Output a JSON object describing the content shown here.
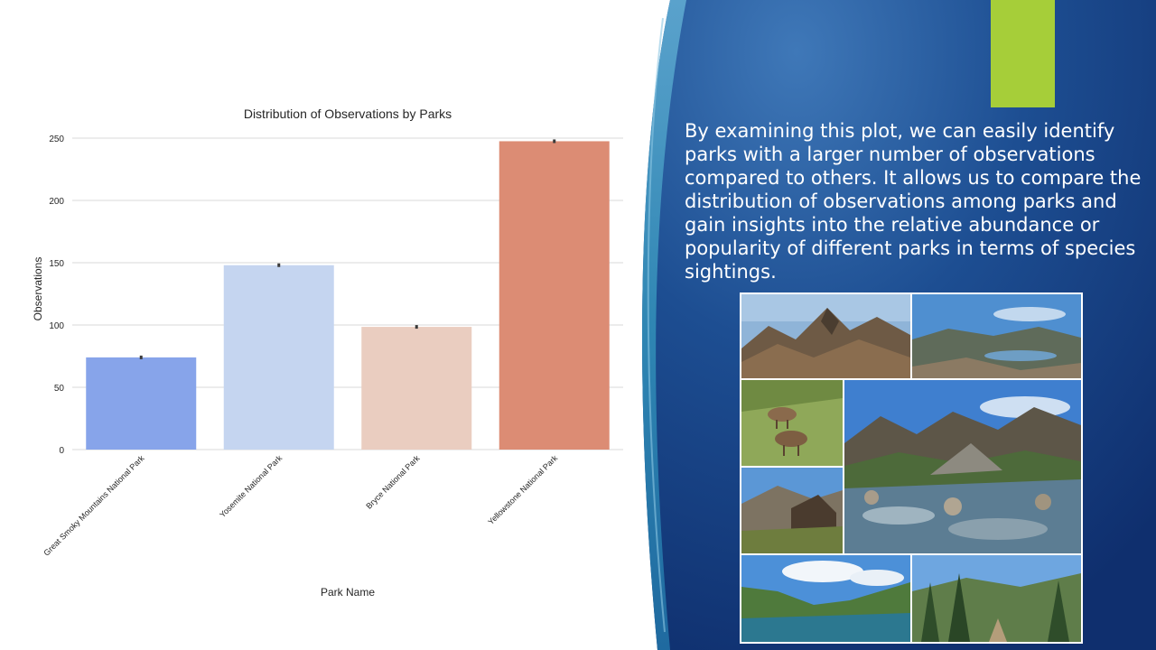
{
  "slide": {
    "body_text": "By examining this plot, we can easily identify parks with a larger number of observations compared to others. It allows us to compare the distribution of observations among parks and gain insights into the relative abundance or popularity of different parks in terms of species sightings.",
    "accent_color": "#a6ce39",
    "background_color": "#1c4a8a"
  },
  "chart_data": {
    "type": "bar",
    "title": "Distribution of Observations by Parks",
    "xlabel": "Park Name",
    "ylabel": "Observations",
    "categories": [
      "Great Smoky Mountains National Park",
      "Yosemite National Park",
      "Bryce National Park",
      "Yellowstone National Park"
    ],
    "values": [
      74,
      148,
      98.5,
      247.5
    ],
    "colors": [
      "#87a4ea",
      "#c5d5f0",
      "#eacdc0",
      "#dc8c74"
    ],
    "ylim": [
      0,
      250
    ],
    "yticks": [
      0,
      50,
      100,
      150,
      200,
      250
    ],
    "grid": true
  },
  "collage": {
    "photos": [
      "rocky-mountain-ridge",
      "mountain-lake-panorama",
      "chamois-on-hillside",
      "mountain-stream-valley",
      "stone-hut",
      "green-valley-lake",
      "forest-trail"
    ]
  }
}
